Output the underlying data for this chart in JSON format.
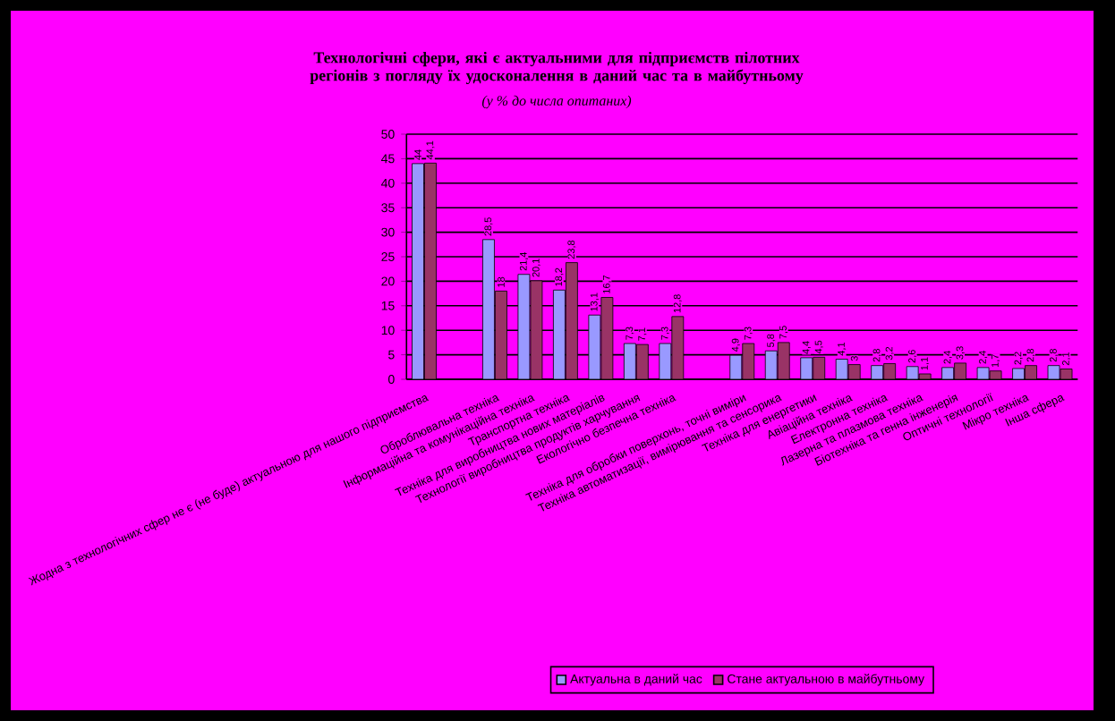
{
  "chart_data": {
    "type": "bar",
    "title": "Технологічні сфери, які є актуальними для підприємств пілотних регіонів з погляду їх удосконалення в даний час та в майбутньому",
    "subtitle": "(у % до числа опитаних)",
    "categories": [
      "Жодна з технологічних сфер не є (не буде) актуальною для нашого підприємства",
      null,
      "Оброблювальна техніка",
      "Інформаційна та комунікаційна техніка",
      "Транспортна техніка",
      "Техніка для виробництва нових матеріалів",
      "Технології виробництва продуктів харчування",
      "Екологічно безпечна техніка",
      null,
      "Техніка для обробки поверхонь, точні виміри",
      "Техніка автоматизації, вимірювання та сенсорика",
      "Техніка для енергетики",
      "Авіаційна техніка",
      "Електронна техніка",
      "Лазерна та плазмова техніка",
      "Біотехніка та генна інженерія",
      "Оптичні технології",
      "Мікро техніка",
      "Інша сфера"
    ],
    "series": [
      {
        "name": "Актуальна в даний час",
        "color": "#9999ff",
        "values": [
          44,
          null,
          28.5,
          21.4,
          18.2,
          13.1,
          7.3,
          7.3,
          null,
          4.9,
          5.8,
          4.4,
          4.1,
          2.8,
          2.6,
          2.4,
          2.4,
          2.2,
          2.8
        ],
        "value_labels": [
          "44",
          null,
          "28,5",
          "21,4",
          "18,2",
          "13,1",
          "7,3",
          "7,3",
          null,
          "4,9",
          "5,8",
          "4,4",
          "4,1",
          "2,8",
          "2,6",
          "2,4",
          "2,4",
          "2,2",
          "2,8"
        ]
      },
      {
        "name": "Стане актуальною в майбутньому",
        "color": "#993366",
        "values": [
          44.1,
          null,
          18,
          20.1,
          23.8,
          16.7,
          7.1,
          12.8,
          null,
          7.3,
          7.5,
          4.5,
          3,
          3.2,
          1.1,
          3.3,
          1.7,
          2.8,
          2.1
        ],
        "value_labels": [
          "44,1",
          null,
          "18",
          "20,1",
          "23,8",
          "16,7",
          "7,1",
          "12,8",
          null,
          "7,3",
          "7,5",
          "4,5",
          "3",
          "3,2",
          "1,1",
          "3,3",
          "1,7",
          "2,8",
          "2,1"
        ]
      }
    ],
    "ylim": [
      0,
      50
    ],
    "yticks": [
      0,
      5,
      10,
      15,
      20,
      25,
      30,
      35,
      40,
      45,
      50
    ],
    "grid": "y",
    "legend": "bottom"
  }
}
